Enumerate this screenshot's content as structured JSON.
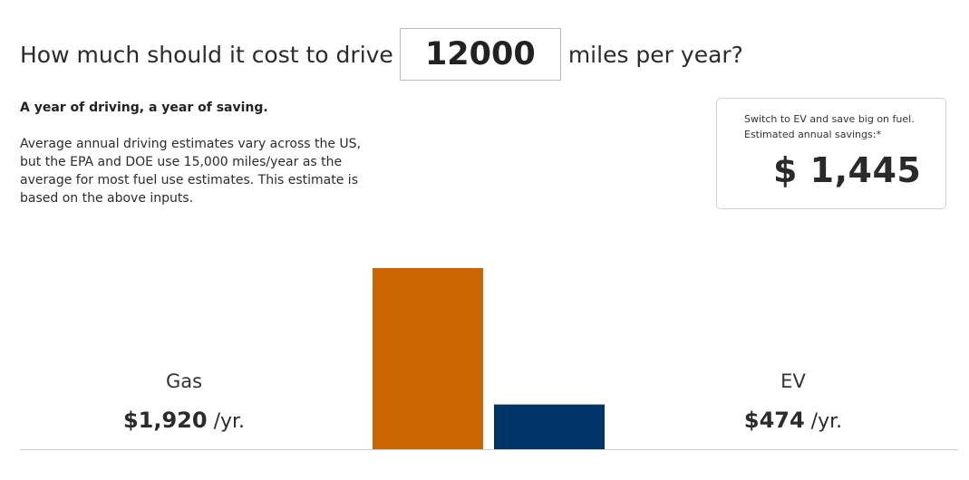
{
  "header": {
    "question_prefix": "How much should it cost to drive",
    "miles_value": "12000",
    "question_suffix": "miles per year?"
  },
  "intro": {
    "title": "A year of driving, a year of saving.",
    "body": "Average annual driving estimates vary across the US, but the EPA and DOE use 15,000 miles/year as the average for most fuel use estimates. This estimate is based on the above inputs."
  },
  "savings": {
    "line1": "Switch to EV and save big on fuel.",
    "line2": "Estimated annual savings:*",
    "amount": "$ 1,445"
  },
  "comparison": {
    "gas": {
      "label": "Gas",
      "cost": "$1,920",
      "unit": "/yr."
    },
    "ev": {
      "label": "EV",
      "cost": "$474",
      "unit": "/yr."
    }
  },
  "chart_data": {
    "type": "bar",
    "categories": [
      "Gas",
      "EV"
    ],
    "values": [
      1920,
      474
    ],
    "colors": [
      "#cc6600",
      "#003366"
    ],
    "axis_color": "#cccccc"
  }
}
